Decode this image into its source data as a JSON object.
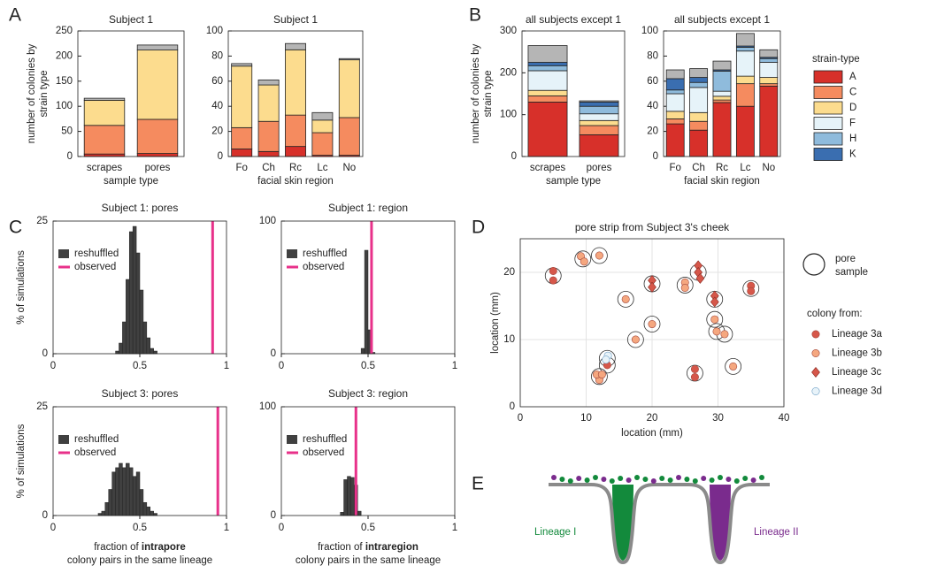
{
  "panel_labels": [
    "A",
    "B",
    "C",
    "D",
    "E"
  ],
  "chart_data": [
    {
      "type": "bar",
      "title": "Subject 1",
      "categories": [
        "scrapes",
        "pores"
      ],
      "xlabel": "sample type",
      "ylabel_lines": [
        "number of colonies by",
        "strain type"
      ],
      "ylim": [
        0,
        250
      ],
      "yticks": [
        0,
        50,
        100,
        150,
        200,
        250
      ],
      "series": [
        {
          "color": "#d7302a",
          "values": [
            5,
            6
          ]
        },
        {
          "color": "#f58b5f",
          "values": [
            57,
            68
          ]
        },
        {
          "color": "#fcdc8e",
          "values": [
            50,
            138
          ]
        },
        {
          "color": "#b5b5b5",
          "values": [
            4,
            10
          ]
        }
      ]
    },
    {
      "type": "bar",
      "title": "Subject 1",
      "categories": [
        "Fo",
        "Ch",
        "Rc",
        "Lc",
        "No"
      ],
      "xlabel": "facial skin region",
      "ylim": [
        0,
        100
      ],
      "yticks": [
        0,
        20,
        40,
        60,
        80,
        100
      ],
      "series": [
        {
          "color": "#d7302a",
          "values": [
            6,
            4,
            8,
            1,
            1
          ]
        },
        {
          "color": "#f58b5f",
          "values": [
            17,
            24,
            25,
            18,
            30
          ]
        },
        {
          "color": "#fcdc8e",
          "values": [
            49,
            29,
            52,
            10,
            46
          ]
        },
        {
          "color": "#b5b5b5",
          "values": [
            2,
            4,
            5,
            6,
            1
          ]
        }
      ]
    },
    {
      "type": "bar",
      "title": "all subjects except 1",
      "categories": [
        "scrapes",
        "pores"
      ],
      "xlabel": "sample type",
      "ylabel_lines": [
        "number of colonies by",
        "strain type"
      ],
      "ylim": [
        0,
        300
      ],
      "yticks": [
        0,
        100,
        200,
        300
      ],
      "series": [
        {
          "color": "#d7302a",
          "values": [
            130,
            52
          ]
        },
        {
          "color": "#f58b5f",
          "values": [
            15,
            22
          ]
        },
        {
          "color": "#fcdc8e",
          "values": [
            13,
            12
          ]
        },
        {
          "color": "#e6f3f9",
          "values": [
            47,
            16
          ]
        },
        {
          "color": "#8fbbdc",
          "values": [
            12,
            18
          ]
        },
        {
          "color": "#3a6eb0",
          "values": [
            8,
            10
          ]
        },
        {
          "color": "#b5b5b5",
          "values": [
            40,
            3
          ]
        }
      ]
    },
    {
      "type": "bar",
      "title": "all subjects except 1",
      "categories": [
        "Fo",
        "Ch",
        "Rc",
        "Lc",
        "No"
      ],
      "xlabel": "facial skin region",
      "ylim": [
        0,
        100
      ],
      "yticks": [
        0,
        20,
        40,
        60,
        80,
        100
      ],
      "legend_title": "strain-type",
      "series": [
        {
          "name": "A",
          "color": "#d7302a",
          "values": [
            26,
            21,
            43,
            40,
            56
          ]
        },
        {
          "name": "C",
          "color": "#f58b5f",
          "values": [
            4,
            7,
            2,
            18,
            2
          ]
        },
        {
          "name": "D",
          "color": "#fcdc8e",
          "values": [
            6,
            7,
            3,
            6,
            5
          ]
        },
        {
          "name": "F",
          "color": "#e6f3f9",
          "values": [
            14,
            20,
            4,
            20,
            12
          ]
        },
        {
          "name": "H",
          "color": "#8fbbdc",
          "values": [
            3,
            4,
            16,
            3,
            3
          ]
        },
        {
          "name": "K",
          "color": "#3a6eb0",
          "values": [
            9,
            4,
            1,
            1,
            1
          ]
        },
        {
          "color": "#b5b5b5",
          "values": [
            7,
            7,
            7,
            10,
            6
          ]
        }
      ]
    },
    {
      "type": "histogram",
      "title": "Subject 1: pores",
      "ylabel": "% of simulations",
      "xlim": [
        0,
        1
      ],
      "xticks": [
        0,
        0.5,
        1
      ],
      "ylim": [
        0,
        25
      ],
      "yticks": [
        0,
        25
      ],
      "bins": [
        0.36,
        0.38,
        0.4,
        0.42,
        0.44,
        0.46,
        0.48,
        0.5,
        0.52,
        0.54,
        0.56,
        0.58,
        0.6
      ],
      "series": [
        {
          "name": "reshuffled",
          "color": "#404040",
          "values": [
            0.5,
            2,
            6,
            14,
            23,
            24,
            19,
            12,
            6,
            3,
            1,
            0.5
          ]
        }
      ],
      "vlines": [
        {
          "name": "observed",
          "color": "#e8318a",
          "x": 0.92
        }
      ]
    },
    {
      "type": "histogram",
      "title": "Subject 1: region",
      "xlim": [
        0,
        1
      ],
      "xticks": [
        0,
        0.5,
        1
      ],
      "ylim": [
        0,
        100
      ],
      "yticks": [
        0,
        100
      ],
      "bins": [
        0.46,
        0.48,
        0.5,
        0.52,
        0.54
      ],
      "series": [
        {
          "name": "reshuffled",
          "color": "#404040",
          "values": [
            4,
            78,
            18,
            1
          ]
        }
      ],
      "vlines": [
        {
          "name": "observed",
          "color": "#e8318a",
          "x": 0.52
        }
      ]
    },
    {
      "type": "histogram",
      "title": "Subject 3: pores",
      "ylabel": "% of simulations",
      "xlim": [
        0,
        1
      ],
      "xticks": [
        0,
        0.5,
        1
      ],
      "ylim": [
        0,
        25
      ],
      "yticks": [
        0,
        25
      ],
      "bins": [
        0.26,
        0.28,
        0.3,
        0.32,
        0.34,
        0.36,
        0.38,
        0.4,
        0.42,
        0.44,
        0.46,
        0.48,
        0.5,
        0.52,
        0.54,
        0.56,
        0.58,
        0.6
      ],
      "series": [
        {
          "name": "reshuffled",
          "color": "#404040",
          "values": [
            0.5,
            1,
            3,
            6,
            10,
            11,
            12,
            11,
            12,
            11,
            9,
            10,
            6,
            3,
            2,
            1,
            0.5
          ]
        }
      ],
      "vlines": [
        {
          "name": "observed",
          "color": "#e8318a",
          "x": 0.95
        }
      ],
      "xlabel": {
        "prefix": "fraction of",
        "emphasis": "intrapore",
        "second_line": "colony pairs in the same lineage"
      }
    },
    {
      "type": "histogram",
      "title": "Subject 3: region",
      "xlim": [
        0,
        1
      ],
      "xticks": [
        0,
        0.5,
        1
      ],
      "ylim": [
        0,
        100
      ],
      "yticks": [
        0,
        100
      ],
      "bins": [
        0.34,
        0.36,
        0.38,
        0.4,
        0.42,
        0.44,
        0.46
      ],
      "series": [
        {
          "name": "reshuffled",
          "color": "#404040",
          "values": [
            3,
            33,
            36,
            35,
            28,
            4
          ]
        }
      ],
      "vlines": [
        {
          "name": "observed",
          "color": "#e8318a",
          "x": 0.43
        }
      ],
      "xlabel": {
        "prefix": "fraction of",
        "emphasis": "intraregion",
        "second_line": "colony pairs in the same lineage"
      }
    },
    {
      "type": "scatter",
      "title": "pore strip from Subject 3's cheek",
      "xlabel": "location (mm)",
      "ylabel": "location (mm)",
      "xlim": [
        0,
        40
      ],
      "xticks": [
        0,
        10,
        20,
        30,
        40
      ],
      "ylim": [
        0,
        25
      ],
      "yticks": [
        0,
        10,
        20
      ],
      "grid": true,
      "pores": {
        "label_lines": [
          "pore",
          "sample"
        ],
        "x": [
          5,
          9.5,
          12,
          16,
          20,
          25,
          27,
          29.5,
          35,
          20,
          17.5,
          29.5,
          29.8,
          31,
          13.2,
          13.2,
          12,
          26.5,
          32.3
        ],
        "y": [
          19.5,
          22,
          22.5,
          16,
          18.3,
          18.1,
          20,
          16,
          17.6,
          12.3,
          10,
          13,
          11.2,
          10.8,
          7.2,
          6.2,
          4.5,
          5,
          6
        ]
      },
      "legend_title": "colony from:",
      "series": [
        {
          "name": "Lineage 3a",
          "marker": "circle",
          "color": "#d6574a",
          "x": [
            5,
            5,
            35,
            35,
            26.5,
            26.5,
            13.2
          ],
          "y": [
            20.2,
            18.8,
            18,
            17.2,
            5.6,
            4.4,
            6.2
          ]
        },
        {
          "name": "Lineage 3b",
          "marker": "circle",
          "color": "#f5a77f",
          "x": [
            9.2,
            9.7,
            12,
            16,
            25,
            25,
            20,
            17.5,
            29.5,
            29.8,
            31,
            12,
            11.6,
            12.4,
            32.3
          ],
          "y": [
            22.4,
            21.6,
            22.5,
            16,
            18.5,
            17.7,
            12.3,
            10,
            13,
            11.2,
            10.8,
            4,
            4.8,
            4.8,
            6
          ]
        },
        {
          "name": "Lineage 3c",
          "marker": "diamond",
          "color": "#d6574a",
          "x": [
            20,
            20,
            27,
            27,
            27.3,
            29.5,
            29.5
          ],
          "y": [
            18.8,
            17.8,
            21,
            20,
            19.1,
            16.5,
            15.6
          ]
        },
        {
          "name": "Lineage 3d",
          "marker": "circle",
          "color": "#e8f3f9",
          "x": [
            13.3,
            13
          ],
          "y": [
            7.6,
            7
          ]
        }
      ]
    }
  ],
  "diagram": {
    "labels": [
      "Lineage I",
      "Lineage II"
    ]
  }
}
